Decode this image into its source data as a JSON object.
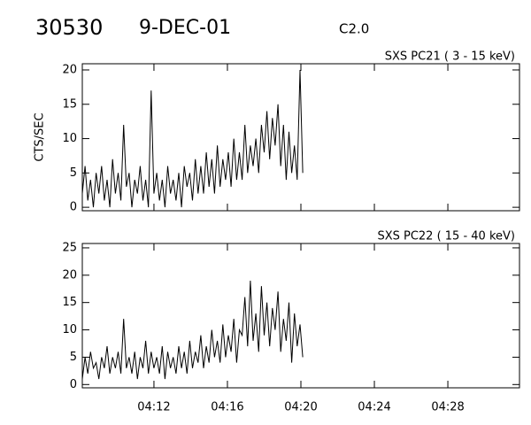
{
  "header": {
    "id": "30530",
    "date": "9-DEC-01",
    "class": "C2.0"
  },
  "chart_data": [
    {
      "type": "line",
      "title": "SXS PC21  (  3 - 15 keV)",
      "y_label": "CTS/SEC",
      "color": "#000000",
      "x": [
        8.1,
        8.25,
        8.4,
        8.55,
        8.7,
        8.85,
        9,
        9.15,
        9.3,
        9.45,
        9.6,
        9.75,
        9.9,
        10.05,
        10.2,
        10.35,
        10.5,
        10.65,
        10.8,
        10.95,
        11.1,
        11.25,
        11.4,
        11.55,
        11.7,
        11.85,
        12,
        12.15,
        12.3,
        12.45,
        12.6,
        12.75,
        12.9,
        13.05,
        13.2,
        13.35,
        13.5,
        13.65,
        13.8,
        13.95,
        14.1,
        14.25,
        14.4,
        14.55,
        14.7,
        14.85,
        15,
        15.15,
        15.3,
        15.45,
        15.6,
        15.75,
        15.9,
        16.05,
        16.2,
        16.35,
        16.5,
        16.65,
        16.8,
        16.95,
        17.1,
        17.25,
        17.4,
        17.55,
        17.7,
        17.85,
        18,
        18.15,
        18.3,
        18.45,
        18.6,
        18.75,
        18.9,
        19.05,
        19.2,
        19.35,
        19.5,
        19.65,
        19.8,
        19.95,
        20.1
      ],
      "values": [
        2,
        6,
        1,
        4,
        0,
        5,
        2,
        6,
        1,
        4,
        0,
        7,
        2,
        5,
        1,
        12,
        3,
        5,
        0,
        4,
        2,
        6,
        1,
        4,
        0,
        17,
        2,
        5,
        1,
        4,
        0,
        6,
        2,
        4,
        1,
        5,
        0,
        6,
        3,
        5,
        1,
        7,
        2,
        6,
        2,
        8,
        3,
        7,
        2,
        9,
        3,
        7,
        4,
        8,
        3,
        10,
        4,
        8,
        4,
        12,
        5,
        9,
        6,
        10,
        5,
        12,
        8,
        14,
        7,
        13,
        9,
        15,
        6,
        12,
        4,
        11,
        5,
        9,
        4,
        20,
        5
      ],
      "xlim": [
        8.1,
        31.9
      ],
      "xticks": [
        12,
        16,
        20,
        24,
        28
      ],
      "ylim": [
        -0.5,
        20.9
      ],
      "yticks": [
        0,
        5,
        10,
        15,
        20
      ]
    },
    {
      "type": "line",
      "title": "SXS PC22  ( 15 - 40 keV)",
      "color": "#000000",
      "x": [
        8.1,
        8.25,
        8.4,
        8.55,
        8.7,
        8.85,
        9,
        9.15,
        9.3,
        9.45,
        9.6,
        9.75,
        9.9,
        10.05,
        10.2,
        10.35,
        10.5,
        10.65,
        10.8,
        10.95,
        11.1,
        11.25,
        11.4,
        11.55,
        11.7,
        11.85,
        12,
        12.15,
        12.3,
        12.45,
        12.6,
        12.75,
        12.9,
        13.05,
        13.2,
        13.35,
        13.5,
        13.65,
        13.8,
        13.95,
        14.1,
        14.25,
        14.4,
        14.55,
        14.7,
        14.85,
        15,
        15.15,
        15.3,
        15.45,
        15.6,
        15.75,
        15.9,
        16.05,
        16.2,
        16.35,
        16.5,
        16.65,
        16.8,
        16.95,
        17.1,
        17.25,
        17.4,
        17.55,
        17.7,
        17.85,
        18,
        18.15,
        18.3,
        18.45,
        18.6,
        18.75,
        18.9,
        19.05,
        19.2,
        19.35,
        19.5,
        19.65,
        19.8,
        19.95,
        20.1
      ],
      "values": [
        1,
        5,
        2,
        6,
        3,
        4,
        1,
        5,
        3,
        7,
        2,
        5,
        3,
        6,
        2,
        12,
        3,
        5,
        2,
        6,
        1,
        5,
        3,
        8,
        2,
        6,
        3,
        5,
        2,
        7,
        1,
        6,
        3,
        5,
        2,
        7,
        3,
        6,
        2,
        8,
        3,
        6,
        4,
        9,
        3,
        7,
        4,
        10,
        5,
        8,
        4,
        11,
        5,
        9,
        6,
        12,
        4,
        10,
        9,
        16,
        7,
        19,
        8,
        13,
        6,
        18,
        9,
        15,
        7,
        14,
        10,
        17,
        6,
        12,
        8,
        15,
        4,
        13,
        7,
        11,
        5
      ],
      "xlim": [
        8.1,
        31.9
      ],
      "xticks": [
        {
          "value": 12,
          "label": "04:12"
        },
        {
          "value": 16,
          "label": "04:16"
        },
        {
          "value": 20,
          "label": "04:20"
        },
        {
          "value": 24,
          "label": "04:24"
        },
        {
          "value": 28,
          "label": "04:28"
        }
      ],
      "ylim": [
        -0.6,
        25.8
      ],
      "yticks": [
        0,
        5,
        10,
        15,
        20,
        25
      ]
    }
  ]
}
